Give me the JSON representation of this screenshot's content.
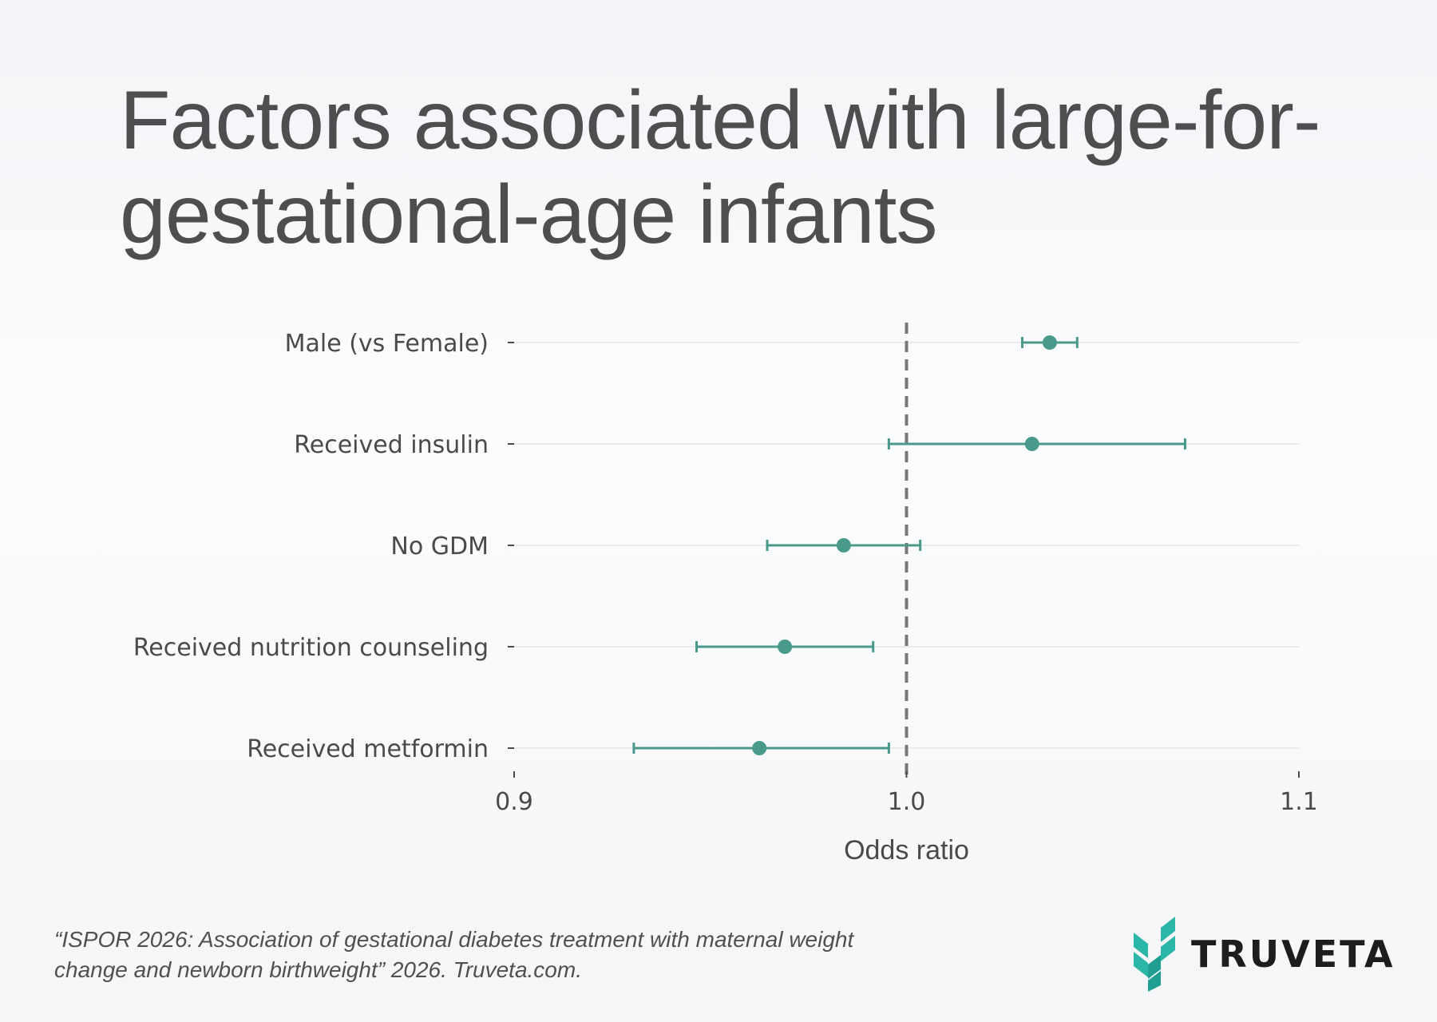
{
  "page": {
    "title": "Factors associated with large-for-gestational-age infants",
    "footer_note": "“ISPOR 2026: Association of gestational diabetes treatment with maternal weight change and newborn birthweight” 2026. Truveta.com.",
    "logo_text": "TRUVETA"
  },
  "colors": {
    "point": "#4a9a8c",
    "reference_line": "#777777",
    "gridline": "#e4e6e8",
    "text": "#4a4a4a",
    "logo_mark": "#2cb6a8"
  },
  "chart_data": {
    "type": "forest",
    "title": "Factors associated with large-for-gestational-age infants",
    "xlabel": "Odds ratio",
    "ylabel": "",
    "xlim": [
      0.9,
      1.1
    ],
    "xticks": [
      "0.9",
      "1.0",
      "1.1"
    ],
    "reference_line": 1.0,
    "grid": "horizontal",
    "categories": [
      "Male (vs Female)",
      "Received insulin",
      "No GDM",
      "Received nutrition counseling",
      "Received metformin"
    ],
    "estimates": [
      1.0365,
      1.032,
      0.984,
      0.969,
      0.9625
    ],
    "ci_lower": [
      1.0295,
      0.9955,
      0.9645,
      0.9465,
      0.9305
    ],
    "ci_upper": [
      1.0435,
      1.071,
      1.0035,
      0.9915,
      0.9955
    ]
  }
}
